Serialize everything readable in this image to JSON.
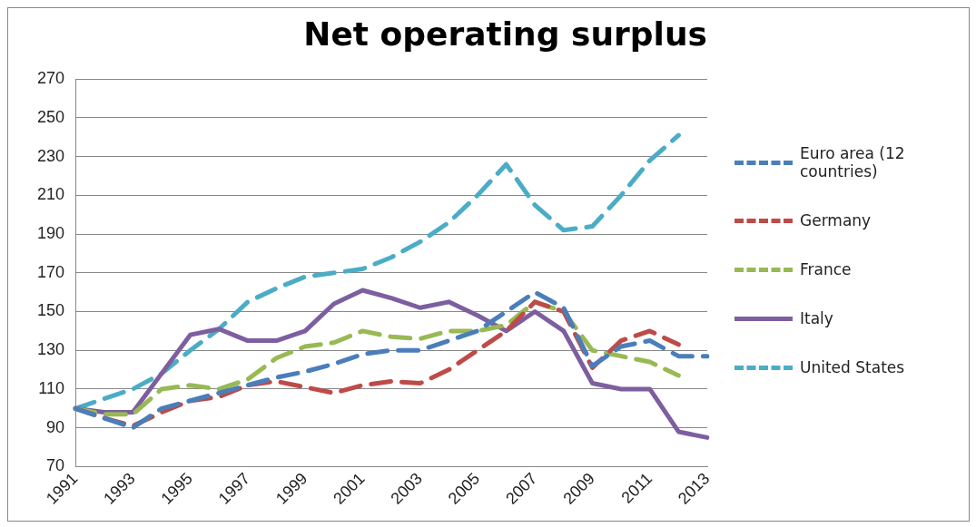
{
  "chart_data": {
    "type": "line",
    "title": "Net operating surplus",
    "categories": [
      "1991",
      null,
      "1993",
      null,
      "1995",
      null,
      "1997",
      null,
      "1999",
      null,
      "2001",
      null,
      "2003",
      null,
      "2005",
      null,
      "2007",
      null,
      "2009",
      null,
      "2011",
      null,
      "2013"
    ],
    "series": [
      {
        "name": "Euro area (12 countries)",
        "color": "#4a7ebb",
        "line_style": "dashed",
        "values": [
          100,
          95,
          90,
          100,
          104,
          108,
          112,
          116,
          119,
          123,
          128,
          130,
          130,
          135,
          140,
          150,
          160,
          152,
          122,
          132,
          135,
          127,
          127
        ]
      },
      {
        "name": "Germany",
        "color": "#be4b48",
        "line_style": "dashed",
        "values": [
          100,
          95,
          91,
          98,
          104,
          106,
          112,
          114,
          111,
          108,
          112,
          114,
          113,
          120,
          130,
          140,
          155,
          150,
          121,
          135,
          140,
          133,
          null
        ]
      },
      {
        "name": "France",
        "color": "#98b954",
        "line_style": "dashed",
        "values": [
          100,
          97,
          97,
          110,
          112,
          110,
          115,
          126,
          132,
          134,
          140,
          137,
          136,
          140,
          140,
          143,
          155,
          150,
          130,
          127,
          124,
          117,
          null
        ]
      },
      {
        "name": "Italy",
        "color": "#7d5fa0",
        "line_style": "solid",
        "values": [
          100,
          98,
          98,
          118,
          138,
          141,
          135,
          135,
          140,
          154,
          161,
          157,
          152,
          155,
          148,
          140,
          150,
          140,
          113,
          110,
          110,
          88,
          85
        ]
      },
      {
        "name": "United States",
        "color": "#4bacc6",
        "line_style": "dashed",
        "values": [
          100,
          105,
          110,
          118,
          130,
          141,
          155,
          162,
          168,
          170,
          172,
          178,
          186,
          196,
          210,
          226,
          205,
          192,
          194,
          210,
          228,
          241,
          null
        ]
      }
    ],
    "ylim": [
      70,
      270
    ],
    "yticks": [
      70,
      90,
      110,
      130,
      150,
      170,
      190,
      210,
      230,
      250,
      270
    ],
    "grid": "y",
    "legend": "right",
    "marker": "none"
  }
}
